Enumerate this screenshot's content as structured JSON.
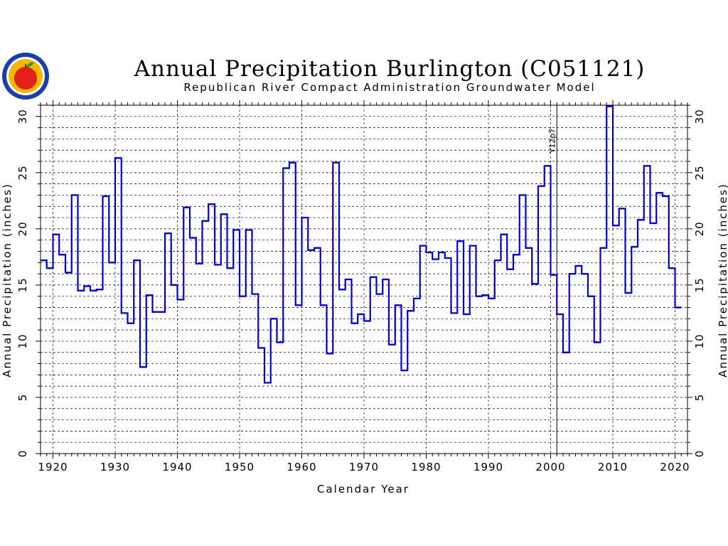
{
  "chart_data": {
    "type": "line",
    "step": true,
    "title": "Annual Precipitation Burlington (C051121)",
    "subtitle": "Republican River Compact Administration Groundwater Model",
    "xlabel": "Calendar Year",
    "ylabel": "Annual Precipitation (inches)",
    "xlim": [
      1918,
      2022
    ],
    "ylim": [
      0,
      31
    ],
    "x_ticks": [
      1920,
      1930,
      1940,
      1950,
      1960,
      1970,
      1980,
      1990,
      2000,
      2010,
      2020
    ],
    "y_ticks": [
      0,
      5,
      10,
      15,
      20,
      25,
      30
    ],
    "grid": true,
    "annotation": {
      "label": "Y12p7",
      "x": 2001
    },
    "series": [
      {
        "color": "#0000cc",
        "x": [
          1918,
          1919,
          1920,
          1921,
          1922,
          1923,
          1924,
          1925,
          1926,
          1927,
          1928,
          1929,
          1930,
          1931,
          1932,
          1933,
          1934,
          1935,
          1936,
          1937,
          1938,
          1939,
          1940,
          1941,
          1942,
          1943,
          1944,
          1945,
          1946,
          1947,
          1948,
          1949,
          1950,
          1951,
          1952,
          1953,
          1954,
          1955,
          1956,
          1957,
          1958,
          1959,
          1960,
          1961,
          1962,
          1963,
          1964,
          1965,
          1966,
          1967,
          1968,
          1969,
          1970,
          1971,
          1972,
          1973,
          1974,
          1975,
          1976,
          1977,
          1978,
          1979,
          1980,
          1981,
          1982,
          1983,
          1984,
          1985,
          1986,
          1987,
          1988,
          1989,
          1990,
          1991,
          1992,
          1993,
          1994,
          1995,
          1996,
          1997,
          1998,
          1999,
          2000,
          2001,
          2002,
          2003,
          2004,
          2005,
          2006,
          2007,
          2008,
          2009,
          2010,
          2011,
          2012,
          2013,
          2014,
          2015,
          2016,
          2017,
          2018,
          2019,
          2020
        ],
        "values": [
          17.2,
          16.5,
          19.5,
          17.7,
          16.1,
          23.0,
          14.5,
          14.9,
          14.5,
          14.6,
          22.9,
          17.0,
          26.3,
          12.5,
          11.6,
          17.2,
          7.7,
          14.1,
          12.6,
          12.6,
          19.6,
          15.0,
          13.7,
          21.9,
          19.2,
          16.9,
          20.7,
          22.2,
          16.8,
          21.3,
          16.5,
          19.9,
          14.0,
          19.9,
          14.2,
          9.4,
          6.3,
          12.0,
          9.9,
          25.4,
          25.9,
          13.2,
          21.0,
          18.1,
          18.3,
          13.2,
          8.9,
          25.9,
          14.6,
          15.5,
          11.6,
          12.4,
          11.8,
          15.7,
          14.2,
          15.5,
          9.7,
          13.2,
          7.4,
          12.7,
          13.8,
          18.5,
          17.9,
          17.3,
          17.9,
          17.4,
          12.5,
          18.9,
          12.4,
          18.5,
          14.0,
          14.1,
          13.8,
          17.2,
          19.5,
          16.4,
          17.7,
          23.0,
          18.3,
          15.1,
          23.8,
          25.6,
          15.9,
          12.4,
          9.0,
          16.0,
          16.7,
          16.0,
          14.0,
          9.9,
          18.3,
          30.9,
          20.3,
          21.8,
          14.3,
          18.4,
          20.8,
          25.6,
          20.5,
          23.2,
          22.9,
          16.5,
          13.0
        ]
      }
    ]
  },
  "logo": {
    "name": "seal",
    "colors": {
      "ring": "#1a3fa8",
      "inner": "#f5b800",
      "apple": "#e0201a",
      "leaf": "#2a9a2a"
    }
  }
}
